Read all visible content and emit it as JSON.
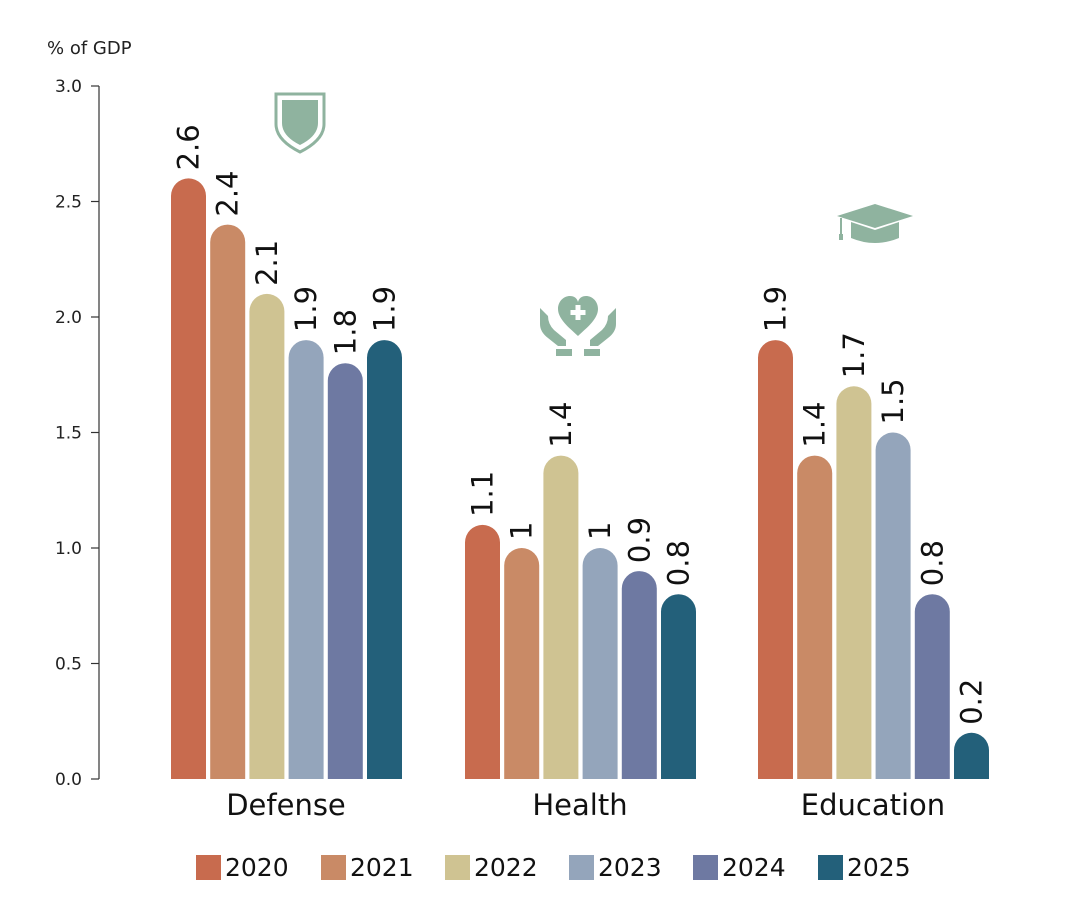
{
  "chart_data": {
    "type": "bar",
    "ylabel": "% of GDP",
    "ylim": [
      0,
      3.0
    ],
    "yticks": [
      "0.0",
      "0.5",
      "1.0",
      "1.5",
      "2.0",
      "2.5",
      "3.0"
    ],
    "categories": [
      "Defense",
      "Health",
      "Education"
    ],
    "category_icons": [
      "shield-icon",
      "heart-hands-icon",
      "graduation-cap-icon"
    ],
    "series": [
      {
        "name": "2020",
        "color": "#c86b4e",
        "values": [
          2.6,
          1.1,
          1.9
        ],
        "labels": [
          "2.6",
          "1.1",
          "1.9"
        ]
      },
      {
        "name": "2021",
        "color": "#c98a66",
        "values": [
          2.4,
          1.0,
          1.4
        ],
        "labels": [
          "2.4",
          "1",
          "1.4"
        ]
      },
      {
        "name": "2022",
        "color": "#cfc392",
        "values": [
          2.1,
          1.4,
          1.7
        ],
        "labels": [
          "2.1",
          "1.4",
          "1.7"
        ]
      },
      {
        "name": "2023",
        "color": "#94a5bb",
        "values": [
          1.9,
          1.0,
          1.5
        ],
        "labels": [
          "1.9",
          "1",
          "1.5"
        ]
      },
      {
        "name": "2024",
        "color": "#6e79a2",
        "values": [
          1.8,
          0.9,
          0.8
        ],
        "labels": [
          "1.8",
          "0.9",
          "0.8"
        ]
      },
      {
        "name": "2025",
        "color": "#23607a",
        "values": [
          1.9,
          0.8,
          0.2
        ],
        "labels": [
          "1.9",
          "0.8",
          "0.2"
        ]
      }
    ],
    "legend_position": "bottom",
    "grid": false
  }
}
